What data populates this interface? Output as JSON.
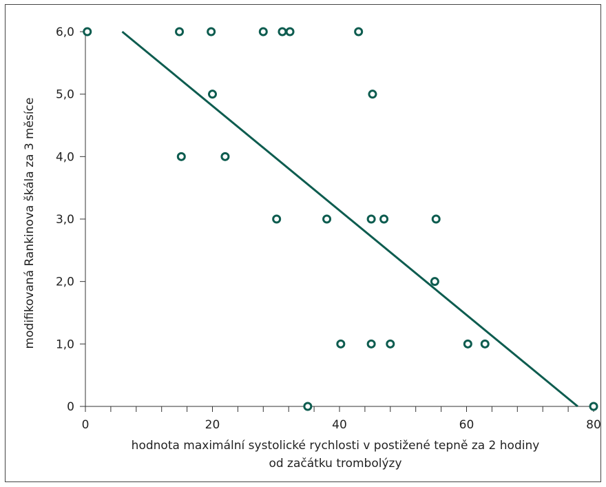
{
  "chart_data": {
    "type": "scatter",
    "title": "",
    "xlabel_lines": [
      "hodnota maximální systolické rychlosti v postižené tepně za 2 hodiny",
      "od začátku trombolýzy"
    ],
    "ylabel": "modifikovaná Rankinova škála za 3 měsíce",
    "xlim": [
      0,
      80
    ],
    "ylim": [
      0,
      6
    ],
    "x_ticks": [
      0,
      20,
      40,
      60,
      80
    ],
    "x_tick_labels": [
      "0",
      "20",
      "40",
      "60",
      "80"
    ],
    "x_minor_step": 4,
    "y_ticks": [
      0,
      1,
      2,
      3,
      4,
      5,
      6
    ],
    "y_tick_labels": [
      "0",
      "1,0",
      "2,0",
      "3,0",
      "4,0",
      "5,0",
      "6,0"
    ],
    "grid": false,
    "marker_color": "#0d5c4f",
    "line_color": "#0d5c4f",
    "points": [
      {
        "x": 0.3,
        "y": 6
      },
      {
        "x": 14.8,
        "y": 6
      },
      {
        "x": 19.8,
        "y": 6
      },
      {
        "x": 28,
        "y": 6
      },
      {
        "x": 31,
        "y": 6
      },
      {
        "x": 32.2,
        "y": 6
      },
      {
        "x": 43,
        "y": 6
      },
      {
        "x": 20,
        "y": 5
      },
      {
        "x": 45.2,
        "y": 5
      },
      {
        "x": 15.1,
        "y": 4
      },
      {
        "x": 22,
        "y": 4
      },
      {
        "x": 30.1,
        "y": 3
      },
      {
        "x": 38,
        "y": 3
      },
      {
        "x": 45,
        "y": 3
      },
      {
        "x": 47,
        "y": 3
      },
      {
        "x": 55.2,
        "y": 3
      },
      {
        "x": 55,
        "y": 2
      },
      {
        "x": 40.2,
        "y": 1
      },
      {
        "x": 45,
        "y": 1
      },
      {
        "x": 48,
        "y": 1
      },
      {
        "x": 60.2,
        "y": 1
      },
      {
        "x": 62.9,
        "y": 1
      },
      {
        "x": 35,
        "y": 0
      },
      {
        "x": 80,
        "y": 0
      }
    ],
    "trend_line": {
      "x1": 5.8,
      "y1": 6,
      "x2": 77.5,
      "y2": 0
    }
  }
}
